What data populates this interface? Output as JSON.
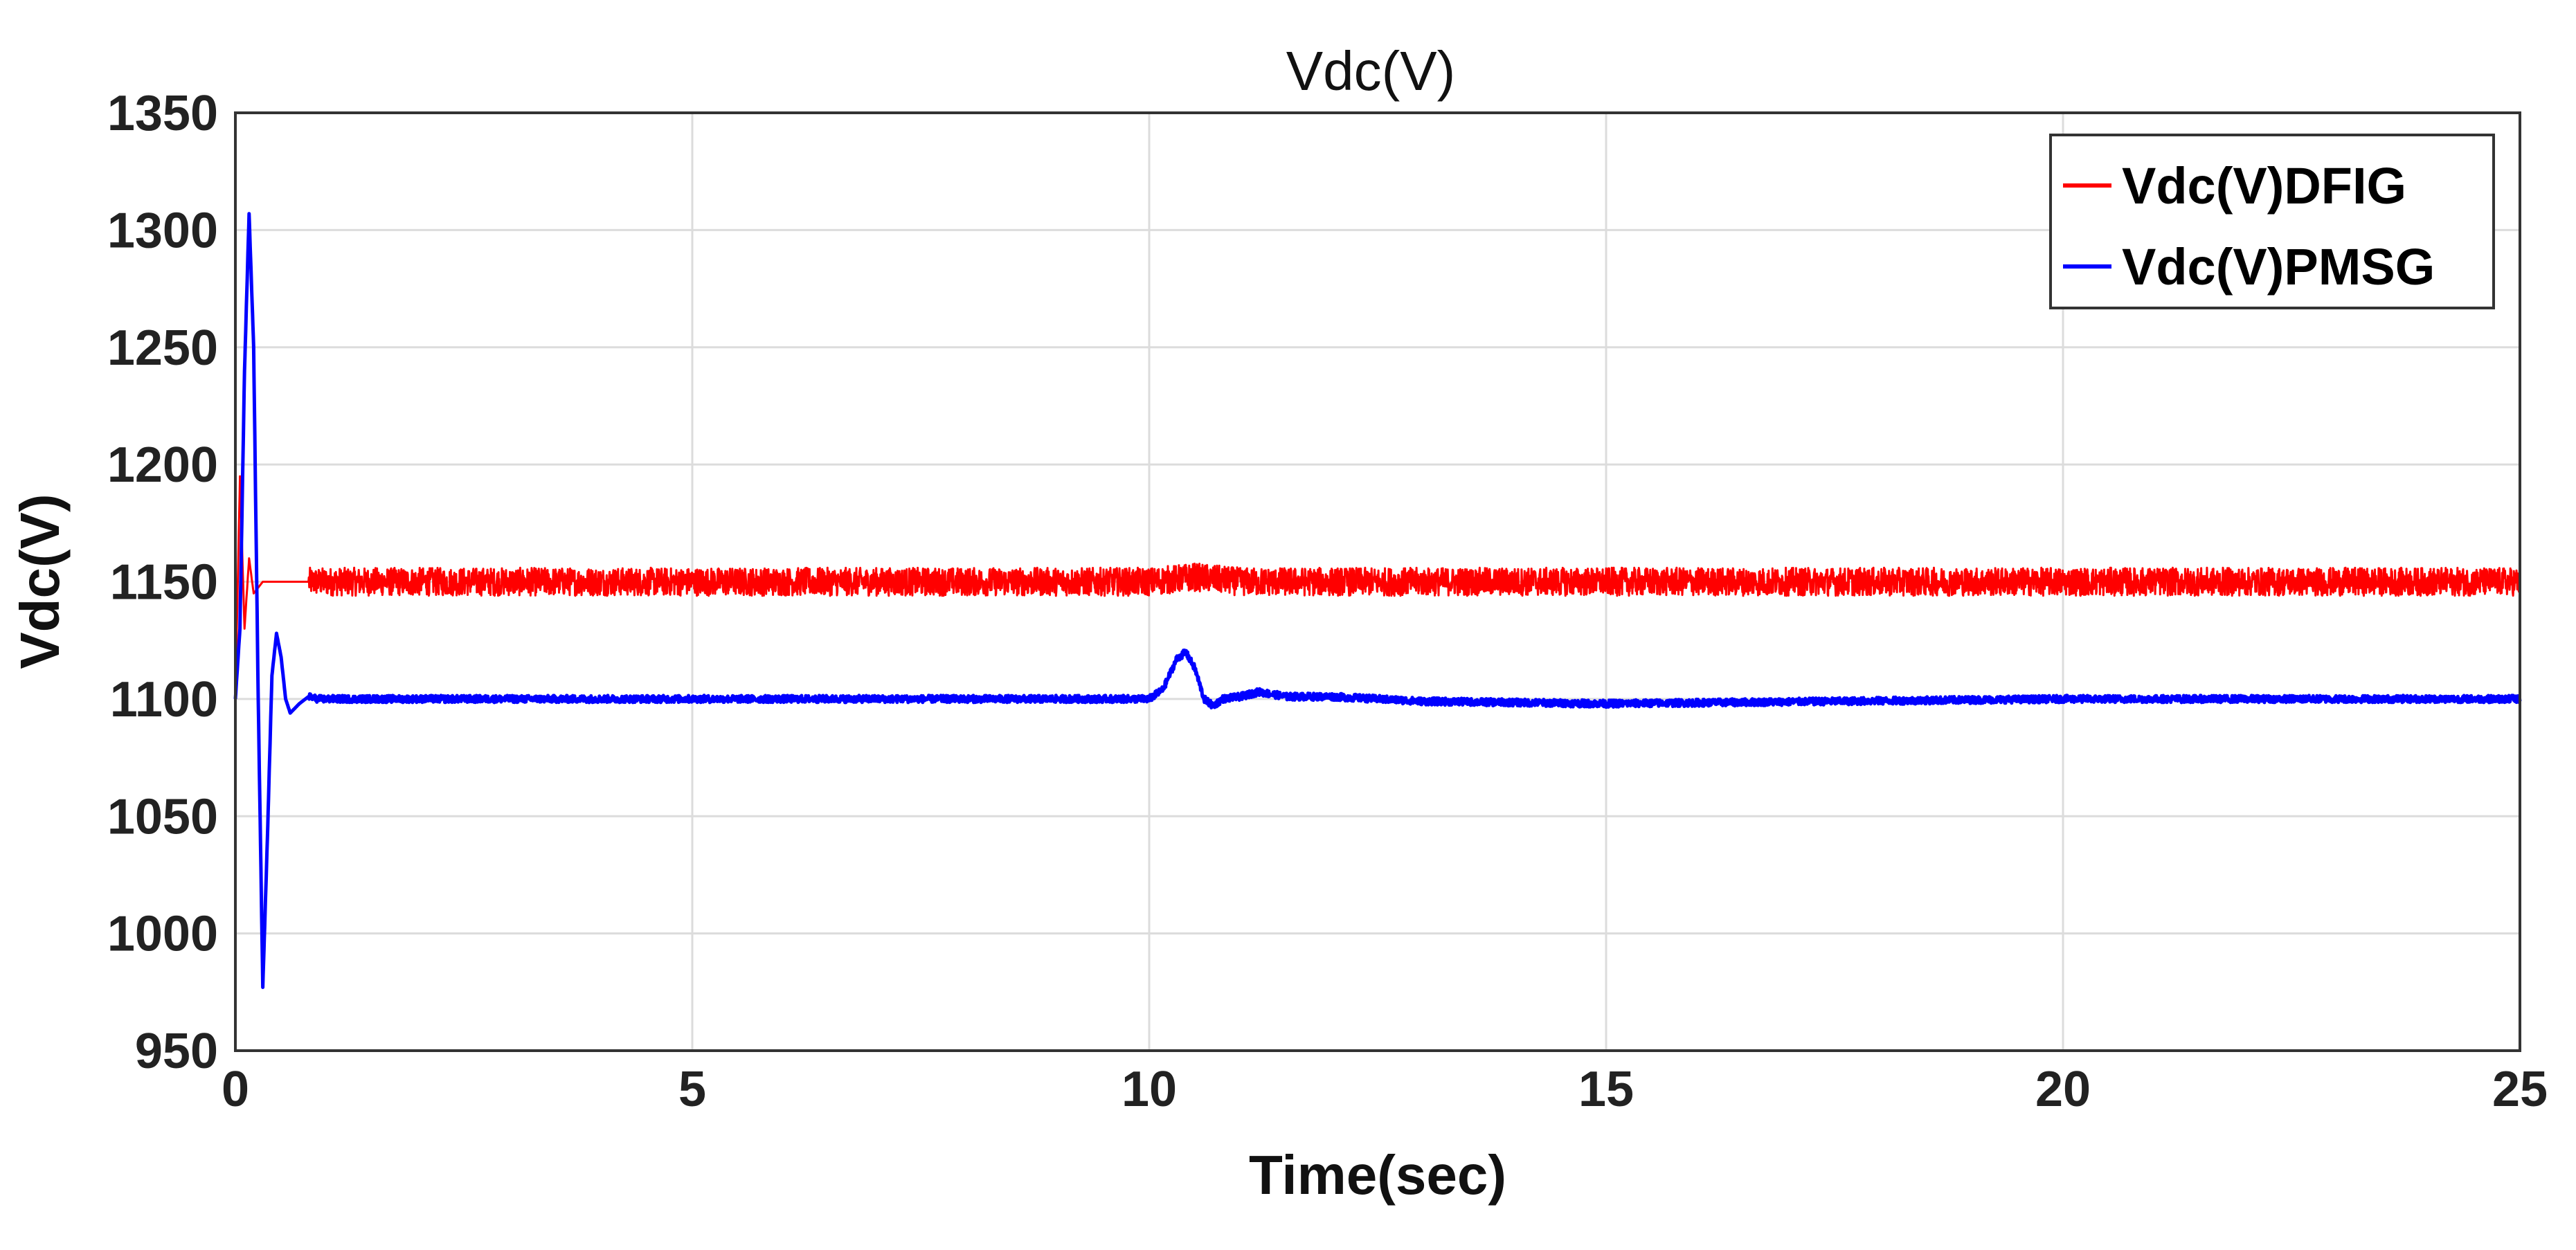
{
  "chart_data": {
    "type": "line",
    "title": "Vdc(V)",
    "xlabel": "Time(sec)",
    "ylabel": "Vdc(V)",
    "xlim": [
      0,
      25
    ],
    "ylim": [
      950,
      1350
    ],
    "x_ticks": [
      0,
      5,
      10,
      15,
      20,
      25
    ],
    "y_ticks": [
      950,
      1000,
      1050,
      1100,
      1150,
      1200,
      1250,
      1300,
      1350
    ],
    "grid": true,
    "legend_position": "top-right",
    "series": [
      {
        "name": "Vdc(V)DFIG",
        "color": "#ff0000",
        "x": [
          0,
          0.05,
          0.1,
          0.15,
          0.2,
          0.3,
          0.5,
          1,
          5,
          10,
          10.5,
          11,
          15,
          20,
          25
        ],
        "y": [
          1100,
          1195,
          1130,
          1160,
          1145,
          1150,
          1150,
          1150,
          1150,
          1150,
          1152,
          1150,
          1150,
          1150,
          1150
        ],
        "band": 6
      },
      {
        "name": "Vdc(V)PMSG",
        "color": "#0000ff",
        "x": [
          0,
          0.05,
          0.1,
          0.15,
          0.2,
          0.25,
          0.3,
          0.35,
          0.4,
          0.45,
          0.5,
          0.55,
          0.6,
          0.7,
          0.8,
          0.9,
          1.0,
          2,
          5,
          9.5,
          10.0,
          10.15,
          10.3,
          10.4,
          10.5,
          10.6,
          10.7,
          10.8,
          11.0,
          11.2,
          11.5,
          12.0,
          13.0,
          15,
          20,
          25
        ],
        "y": [
          1100,
          1130,
          1240,
          1307,
          1250,
          1100,
          977,
          1040,
          1110,
          1128,
          1118,
          1100,
          1094,
          1098,
          1101,
          1100,
          1100,
          1100,
          1100,
          1100,
          1100,
          1104,
          1117,
          1120,
          1113,
          1100,
          1097,
          1100,
          1101,
          1103,
          1101,
          1101,
          1099,
          1098,
          1100,
          1100
        ],
        "band": 1.5
      }
    ]
  }
}
